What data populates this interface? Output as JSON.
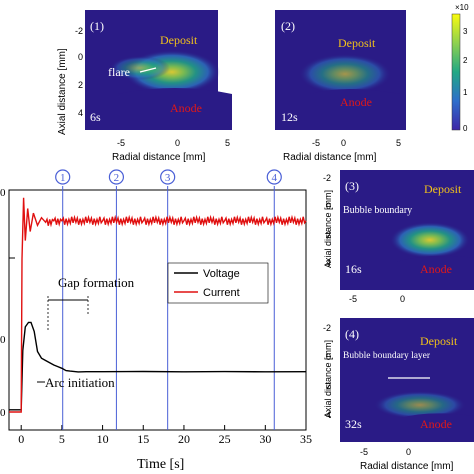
{
  "colors": {
    "voltage": "#000000",
    "current": "#e01010",
    "markers": "#4a5fd6",
    "deposit_label": "#f2c21b",
    "anode_label": "#e01818",
    "image_bg": "#2a1b86"
  },
  "panels": [
    {
      "number": "(1)",
      "time": "6s",
      "deposit": "Deposit",
      "anode": "Anode",
      "note": "flare"
    },
    {
      "number": "(2)",
      "time": "12s",
      "deposit": "Deposit",
      "anode": "Anode",
      "note": ""
    },
    {
      "number": "(3)",
      "time": "16s",
      "deposit": "Deposit",
      "anode": "Anode",
      "note": "Bubble boundary"
    },
    {
      "number": "(4)",
      "time": "32s",
      "deposit": "Deposit",
      "anode": "Anode",
      "note": "Bubble boundary layer"
    }
  ],
  "image_axes": {
    "xlabel": "Radial distance [mm]",
    "ylabel": "Axial distance [mm]",
    "xticks": [
      "-5",
      "0",
      "5"
    ],
    "yticks": [
      "-2",
      "0",
      "2",
      "4"
    ]
  },
  "colorbar": {
    "ticks": [
      "3",
      "2",
      "1",
      "0"
    ],
    "top_label": "×10"
  },
  "chart_data": {
    "type": "line",
    "xlabel": "Time [s]",
    "ylabel": "",
    "xlim": [
      -1.5,
      35
    ],
    "x_ticks": [
      "0",
      "5",
      "10",
      "15",
      "20",
      "25",
      "30",
      "35"
    ],
    "y_ticks_partial": [
      "0",
      "0",
      "0"
    ],
    "markers": [
      {
        "label": "1",
        "x": 5.1
      },
      {
        "label": "2",
        "x": 11.7
      },
      {
        "label": "3",
        "x": 18.0
      },
      {
        "label": "4",
        "x": 31.1
      }
    ],
    "legend": [
      "Voltage",
      "Current"
    ],
    "legend_position": "right",
    "annotations": [
      "Gap formation",
      "Arc initiation"
    ],
    "series": [
      {
        "name": "Voltage",
        "x": [
          -1.5,
          0.0,
          0.2,
          0.5,
          0.9,
          1.2,
          1.6,
          2.0,
          2.5,
          3.0,
          3.5,
          4.0,
          4.5,
          5.0,
          5.5,
          6.0,
          7.0,
          8.0,
          10.0,
          15.0,
          20.0,
          25.0,
          30.0,
          35.0
        ],
        "y": [
          2,
          2,
          55,
          76,
          80,
          80,
          72,
          54,
          48,
          46,
          44,
          42,
          40.5,
          39,
          37,
          36.5,
          35.8,
          36,
          36,
          36.2,
          35.9,
          36.1,
          35.9,
          36
        ]
      },
      {
        "name": "Current",
        "x": [
          -1.5,
          0.0,
          0.1,
          0.3,
          0.5,
          0.8,
          1.1,
          1.5,
          2.0,
          2.5,
          3.0,
          4.0,
          5.0,
          10.0,
          15.0,
          20.0,
          25.0,
          30.0,
          35.0
        ],
        "y": [
          0,
          0,
          100,
          140,
          112,
          133,
          118,
          130,
          122,
          127,
          124,
          125,
          125,
          125,
          125,
          125,
          125,
          125,
          125
        ]
      }
    ]
  }
}
